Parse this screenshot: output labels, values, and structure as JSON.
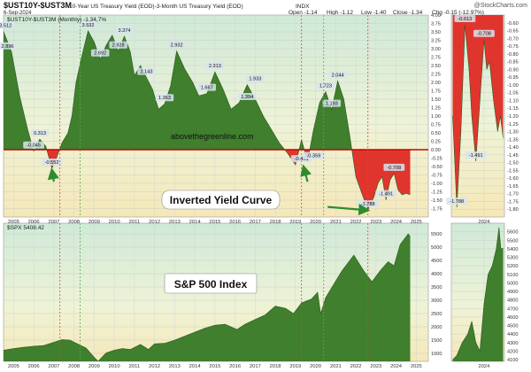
{
  "header": {
    "symbol": "$UST10Y-$UST3M",
    "description": "10-Year US Treasury Yield (EOD)-3-Month US Treasury Yield (EOD)",
    "exchange": "INDX",
    "watermark": "@StockCharts.com",
    "date": "6-Sep-2024",
    "ohlc": {
      "open": "Open -1.14",
      "high": "High -1.12",
      "low": "Low -1.40",
      "close": "Close -1.34",
      "chg": "Chg -0.15 (-12.97%)"
    }
  },
  "colors": {
    "green": "#3f7f2d",
    "red": "#e0352d",
    "zero_line": "#cc0000",
    "arrow": "#2e8b2e",
    "dash_red": "#dd4444",
    "dash_green": "#55aa55",
    "label_box": "#d8e4ee"
  },
  "chart_data": [
    {
      "type": "area",
      "panel": "main-top",
      "legend": "$UST10Y-$UST3M (Monthly) -1.34,7%",
      "site_text": "abovethegreenline.com",
      "callout": "Inverted Yield Curve",
      "ylim": [
        -2.0,
        4.0
      ],
      "yticks": [
        "4.00",
        "3.75",
        "3.50",
        "3.25",
        "3.00",
        "2.75",
        "2.50",
        "2.25",
        "2.00",
        "1.75",
        "1.50",
        "1.25",
        "1.00",
        "0.75",
        "0.50",
        "0.25",
        "0.00",
        "-0.25",
        "-0.50",
        "-0.75",
        "-1.00",
        "-1.25",
        "-1.50",
        "-1.75"
      ],
      "yticks_values": [
        4.0,
        3.75,
        3.5,
        3.25,
        3.0,
        2.75,
        2.5,
        2.25,
        2.0,
        1.75,
        1.5,
        1.25,
        1.0,
        0.75,
        0.5,
        0.25,
        0.0,
        -0.25,
        -0.5,
        -0.75,
        -1.0,
        -1.25,
        -1.5,
        -1.75
      ],
      "xlim": [
        2004.5,
        2025.6
      ],
      "xticks": [
        "2005",
        "2006",
        "2007",
        "2008",
        "2009",
        "2010",
        "2011",
        "2012",
        "2013",
        "2014",
        "2015",
        "2016",
        "2017",
        "2018",
        "2019",
        "2020",
        "2021",
        "2022",
        "2023",
        "2024",
        "2025"
      ],
      "x": [
        2004.5,
        2004.9,
        2005.3,
        2005.7,
        2006.0,
        2006.3,
        2006.6,
        2006.9,
        2007.1,
        2007.4,
        2007.7,
        2007.9,
        2008.1,
        2008.4,
        2008.7,
        2009.0,
        2009.3,
        2009.6,
        2009.9,
        2010.2,
        2010.5,
        2010.8,
        2011.0,
        2011.3,
        2011.6,
        2011.9,
        2012.2,
        2012.5,
        2012.8,
        2013.1,
        2013.5,
        2013.9,
        2014.2,
        2014.6,
        2015.0,
        2015.4,
        2015.8,
        2016.2,
        2016.6,
        2017.0,
        2017.4,
        2017.8,
        2018.2,
        2018.6,
        2019.0,
        2019.3,
        2019.6,
        2019.9,
        2020.2,
        2020.5,
        2020.8,
        2021.1,
        2021.4,
        2021.7,
        2022.0,
        2022.3,
        2022.6,
        2022.9,
        2023.1,
        2023.3,
        2023.5,
        2023.7,
        2023.9,
        2024.1,
        2024.3,
        2024.5,
        2024.7
      ],
      "y": [
        3.512,
        2.9,
        1.6,
        0.6,
        -0.045,
        0.313,
        0.1,
        -0.552,
        -0.3,
        0.2,
        0.5,
        1.0,
        2.0,
        2.8,
        3.532,
        3.2,
        2.692,
        3.1,
        3.4,
        2.928,
        3.374,
        2.9,
        2.2,
        2.5,
        2.143,
        1.8,
        1.2,
        1.363,
        1.9,
        2.932,
        2.4,
        2.0,
        1.6,
        1.667,
        2.313,
        1.8,
        1.2,
        1.394,
        1.933,
        1.5,
        1.0,
        0.6,
        0.2,
        -0.1,
        -0.451,
        0.3,
        -0.359,
        0.6,
        1.4,
        1.723,
        1.193,
        2.044,
        1.5,
        0.4,
        -0.8,
        -1.3,
        -1.788,
        -1.4,
        -1.0,
        -0.8,
        -1.491,
        -0.9,
        -0.708,
        -1.2,
        -1.34,
        -1.3,
        -1.34
      ],
      "point_labels": [
        {
          "x": 2004.6,
          "y": 3.512,
          "text": "3.512"
        },
        {
          "x": 2004.7,
          "y": 2.9,
          "text": "2.896"
        },
        {
          "x": 2006.0,
          "y": -0.045,
          "text": "-0.045"
        },
        {
          "x": 2006.3,
          "y": 0.313,
          "text": "0.313"
        },
        {
          "x": 2006.9,
          "y": -0.552,
          "text": "-0.552"
        },
        {
          "x": 2008.7,
          "y": 3.532,
          "text": "3.532"
        },
        {
          "x": 2009.3,
          "y": 2.692,
          "text": "2.692"
        },
        {
          "x": 2010.5,
          "y": 3.374,
          "text": "3.374"
        },
        {
          "x": 2010.2,
          "y": 2.928,
          "text": "2.928"
        },
        {
          "x": 2011.6,
          "y": 2.143,
          "text": "2.143"
        },
        {
          "x": 2012.5,
          "y": 1.363,
          "text": "1.363"
        },
        {
          "x": 2013.1,
          "y": 2.932,
          "text": "2.932"
        },
        {
          "x": 2014.6,
          "y": 1.667,
          "text": "1.667"
        },
        {
          "x": 2015.0,
          "y": 2.313,
          "text": "2.313"
        },
        {
          "x": 2016.6,
          "y": 1.394,
          "text": "1.394"
        },
        {
          "x": 2017.0,
          "y": 1.933,
          "text": "1.933"
        },
        {
          "x": 2019.3,
          "y": -0.451,
          "text": "-0.451"
        },
        {
          "x": 2019.9,
          "y": -0.359,
          "text": "-0.359"
        },
        {
          "x": 2020.5,
          "y": 1.723,
          "text": "1.723"
        },
        {
          "x": 2020.8,
          "y": 1.193,
          "text": "1.193"
        },
        {
          "x": 2021.1,
          "y": 2.044,
          "text": "2.044"
        },
        {
          "x": 2022.6,
          "y": -1.788,
          "text": "-1.788"
        },
        {
          "x": 2023.5,
          "y": -1.491,
          "text": "-1.491"
        },
        {
          "x": 2023.9,
          "y": -0.708,
          "text": "-0.708"
        }
      ],
      "recession_lines": [
        2007.3,
        2019.3,
        2022.6
      ],
      "recovery_lines": [
        2008.3,
        2020.4
      ],
      "arrows": [
        {
          "x1": 2007.0,
          "y1": -0.95,
          "x2": 2006.9,
          "y2": -0.6
        },
        {
          "x1": 2019.6,
          "y1": -0.95,
          "x2": 2019.4,
          "y2": -0.5
        },
        {
          "x1": 2020.6,
          "y1": -1.7,
          "x2": 2022.6,
          "y2": -1.8
        }
      ]
    },
    {
      "type": "area",
      "panel": "zoom-top",
      "ylim": [
        -1.85,
        -0.55
      ],
      "yticks": [
        "-0.60",
        "-0.65",
        "-0.70",
        "-0.75",
        "-0.80",
        "-0.85",
        "-0.90",
        "-0.95",
        "-1.00",
        "-1.05",
        "-1.10",
        "-1.15",
        "-1.20",
        "-1.25",
        "-1.30",
        "-1.35",
        "-1.40",
        "-1.45",
        "-1.50",
        "-1.55",
        "-1.60",
        "-1.65",
        "-1.70",
        "-1.75",
        "-1.80"
      ],
      "yticks_values": [
        -0.6,
        -0.65,
        -0.7,
        -0.75,
        -0.8,
        -0.85,
        -0.9,
        -0.95,
        -1.0,
        -1.05,
        -1.1,
        -1.15,
        -1.2,
        -1.25,
        -1.3,
        -1.35,
        -1.4,
        -1.45,
        -1.5,
        -1.55,
        -1.6,
        -1.65,
        -1.7,
        -1.75,
        -1.8
      ],
      "xlim": [
        2022.8,
        2024.75
      ],
      "xticks": [
        "2024"
      ],
      "xticks_values": [
        2024.0
      ],
      "x": [
        2022.85,
        2023.0,
        2023.15,
        2023.3,
        2023.45,
        2023.55,
        2023.7,
        2023.85,
        2024.0,
        2024.1,
        2024.2,
        2024.35,
        2024.5,
        2024.6,
        2024.7
      ],
      "y": [
        -1.2,
        -1.788,
        -1.3,
        -0.613,
        -0.9,
        -1.2,
        -1.491,
        -1.1,
        -0.708,
        -0.9,
        -0.85,
        -1.1,
        -1.3,
        -1.2,
        -1.34
      ],
      "point_labels": [
        {
          "x": 2023.0,
          "y": -1.788,
          "text": "-1.788"
        },
        {
          "x": 2023.3,
          "y": -0.613,
          "text": "-0.613"
        },
        {
          "x": 2023.7,
          "y": -1.491,
          "text": "-1.491"
        },
        {
          "x": 2024.0,
          "y": -0.708,
          "text": "-0.708"
        }
      ]
    },
    {
      "type": "area",
      "panel": "main-bottom",
      "legend": "$SPX 5408.42",
      "callout": "S&P 500 Index",
      "ylim": [
        700,
        5900
      ],
      "yticks": [
        "5500",
        "5000",
        "4500",
        "4000",
        "3500",
        "3000",
        "2500",
        "2000",
        "1500",
        "1000"
      ],
      "yticks_values": [
        5500,
        5000,
        4500,
        4000,
        3500,
        3000,
        2500,
        2000,
        1500,
        1000
      ],
      "xlim": [
        2004.5,
        2025.6
      ],
      "xticks": [
        "2005",
        "2006",
        "2007",
        "2008",
        "2009",
        "2010",
        "2011",
        "2012",
        "2013",
        "2014",
        "2015",
        "2016",
        "2017",
        "2018",
        "2019",
        "2020",
        "2021",
        "2022",
        "2023",
        "2024",
        "2025"
      ],
      "x": [
        2004.5,
        2005.0,
        2005.5,
        2006.0,
        2006.5,
        2007.0,
        2007.4,
        2007.8,
        2008.2,
        2008.6,
        2009.0,
        2009.2,
        2009.6,
        2010.0,
        2010.4,
        2010.8,
        2011.3,
        2011.7,
        2012.0,
        2012.5,
        2013.0,
        2013.5,
        2014.0,
        2014.5,
        2015.0,
        2015.5,
        2016.1,
        2016.5,
        2017.0,
        2017.5,
        2018.0,
        2018.5,
        2018.9,
        2019.3,
        2019.8,
        2020.1,
        2020.25,
        2020.5,
        2020.9,
        2021.3,
        2021.9,
        2022.4,
        2022.8,
        2023.2,
        2023.6,
        2023.9,
        2024.2,
        2024.6,
        2024.7
      ],
      "y": [
        1120,
        1180,
        1230,
        1270,
        1300,
        1420,
        1520,
        1500,
        1350,
        1200,
        850,
        700,
        1020,
        1120,
        1180,
        1150,
        1340,
        1150,
        1360,
        1380,
        1500,
        1650,
        1800,
        1950,
        2060,
        2100,
        1900,
        2100,
        2280,
        2450,
        2780,
        2700,
        2500,
        2900,
        3050,
        3300,
        2500,
        3100,
        3600,
        4100,
        4700,
        4100,
        3700,
        4100,
        4450,
        4300,
        5100,
        5500,
        5400
      ]
    },
    {
      "type": "area",
      "panel": "zoom-bottom",
      "ylim": [
        4080,
        5700
      ],
      "yticks": [
        "5600",
        "5500",
        "5400",
        "5300",
        "5200",
        "5100",
        "5000",
        "4900",
        "4800",
        "4700",
        "4600",
        "4500",
        "4400",
        "4300",
        "4200",
        "4100"
      ],
      "yticks_values": [
        5600,
        5500,
        5400,
        5300,
        5200,
        5100,
        5000,
        4900,
        4800,
        4700,
        4600,
        4500,
        4400,
        4300,
        4200,
        4100
      ],
      "xlim": [
        2022.8,
        2024.75
      ],
      "xticks": [
        "2024"
      ],
      "xticks_values": [
        2024.0
      ],
      "x": [
        2022.85,
        2023.0,
        2023.2,
        2023.4,
        2023.55,
        2023.7,
        2023.85,
        2024.0,
        2024.15,
        2024.3,
        2024.45,
        2024.55,
        2024.62,
        2024.7
      ],
      "y": [
        4100,
        4150,
        4300,
        4400,
        4550,
        4300,
        4200,
        4750,
        5100,
        5200,
        5400,
        5650,
        5400,
        5408
      ]
    }
  ]
}
